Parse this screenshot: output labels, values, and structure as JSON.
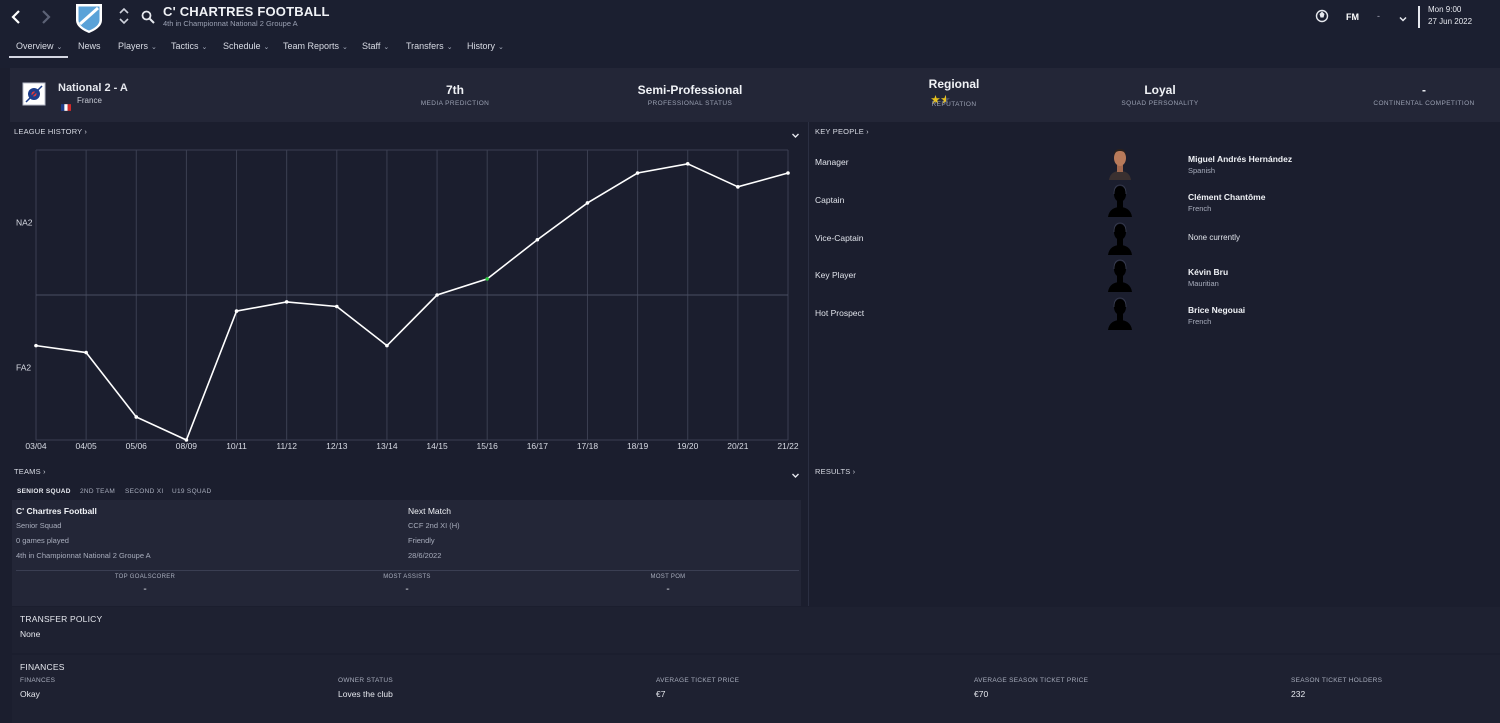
{
  "header": {
    "club_title": "C' CHARTRES FOOTBALL",
    "club_subtitle": "4th in Championnat National 2 Groupe A",
    "fm_label": "FM",
    "fm_dash": "-",
    "time": "Mon 9:00",
    "date": "27 Jun 2022"
  },
  "menu": {
    "items": [
      {
        "label": "Overview"
      },
      {
        "label": "News"
      },
      {
        "label": "Players"
      },
      {
        "label": "Tactics"
      },
      {
        "label": "Schedule"
      },
      {
        "label": "Team Reports"
      },
      {
        "label": "Staff"
      },
      {
        "label": "Transfers"
      },
      {
        "label": "History"
      }
    ]
  },
  "summary": {
    "league": "National 2 - A",
    "country": "France",
    "media_prediction": {
      "value": "7th",
      "label": "MEDIA PREDICTION"
    },
    "professional_status": {
      "value": "Semi-Professional",
      "label": "PROFESSIONAL STATUS"
    },
    "reputation": {
      "value": "Regional",
      "label": "REPUTATION",
      "stars": 1.5
    },
    "squad_personality": {
      "value": "Loyal",
      "label": "SQUAD PERSONALITY"
    },
    "continental": {
      "value": "-",
      "label": "CONTINENTAL COMPETITION"
    }
  },
  "league_history": {
    "title": "LEAGUE HISTORY",
    "arrow": "›"
  },
  "chart_data": {
    "type": "line",
    "title": "LEAGUE HISTORY",
    "x": [
      "03/04",
      "04/05",
      "05/06",
      "08/09",
      "10/11",
      "11/12",
      "12/13",
      "13/14",
      "14/15",
      "15/16",
      "16/17",
      "17/18",
      "18/19",
      "19/20",
      "20/21",
      "21/22"
    ],
    "y_labels": [
      "NA2",
      "FA2"
    ],
    "series": [
      {
        "values": [
          4.1,
          3.8,
          1.0,
          0.0,
          5.6,
          6.0,
          5.8,
          4.1,
          6.3,
          7.0,
          8.7,
          10.3,
          11.6,
          12.0,
          11.0,
          11.6
        ]
      }
    ],
    "ylim": [
      0,
      12.6
    ],
    "grid": true
  },
  "key_people": {
    "title": "KEY PEOPLE",
    "arrow": "›",
    "rows": [
      {
        "role": "Manager",
        "name": "Miguel Andrés Hernández",
        "nationality": "Spanish",
        "photo": "face"
      },
      {
        "role": "Captain",
        "name": "Clément Chantôme",
        "nationality": "French",
        "photo": "silhouette"
      },
      {
        "role": "Vice-Captain",
        "name": "",
        "nationality": "",
        "none": "None currently",
        "photo": "silhouette"
      },
      {
        "role": "Key Player",
        "name": "Kévin Bru",
        "nationality": "Mauritian",
        "photo": "silhouette"
      },
      {
        "role": "Hot Prospect",
        "name": "Brice Negouai",
        "nationality": "French",
        "photo": "silhouette"
      }
    ]
  },
  "teams": {
    "title": "TEAMS",
    "arrow": "›",
    "tabs": [
      "SENIOR SQUAD",
      "2ND TEAM",
      "SECOND XI",
      "U19 SQUAD"
    ],
    "squad_name": "C' Chartres Football",
    "squad_type": "Senior Squad",
    "games_played": "0 games played",
    "league_position": "4th in Championnat National 2 Groupe A",
    "next_match_label": "Next Match",
    "next_match_opponent": "CCF 2nd XI (H)",
    "next_match_type": "Friendly",
    "next_match_date": "28/6/2022",
    "stats": [
      {
        "label": "TOP GOALSCORER",
        "value": "-"
      },
      {
        "label": "MOST ASSISTS",
        "value": "-"
      },
      {
        "label": "MOST POM",
        "value": "-"
      }
    ]
  },
  "results": {
    "title": "RESULTS",
    "arrow": "›"
  },
  "transfer_policy": {
    "title": "TRANSFER POLICY",
    "value": "None"
  },
  "finances": {
    "title": "FINANCES",
    "items": [
      {
        "label": "FINANCES",
        "value": "Okay"
      },
      {
        "label": "OWNER STATUS",
        "value": "Loves the club"
      },
      {
        "label": "AVERAGE TICKET PRICE",
        "value": "€7"
      },
      {
        "label": "AVERAGE SEASON TICKET PRICE",
        "value": "€70"
      },
      {
        "label": "SEASON TICKET HOLDERS",
        "value": "232"
      }
    ]
  },
  "colors": {
    "background": "#1b1e2e",
    "panel": "#232637",
    "line": "#ffffff",
    "accent_point": "#2ecc40",
    "star": "#e8c21c"
  }
}
